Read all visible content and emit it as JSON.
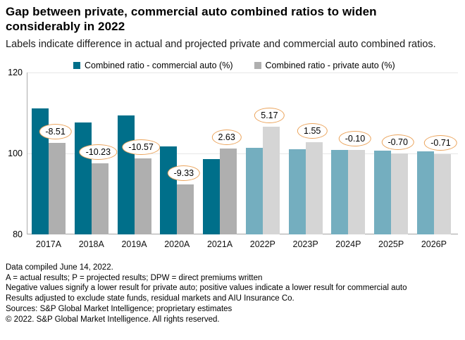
{
  "header": {
    "title": "Gap between private, commercial auto combined ratios to widen considerably in 2022",
    "subtitle": "Labels indicate difference in actual and projected private and commercial auto combined ratios."
  },
  "chart_data": {
    "type": "bar",
    "categories": [
      "2017A",
      "2018A",
      "2019A",
      "2020A",
      "2021A",
      "2022P",
      "2023P",
      "2024P",
      "2025P",
      "2026P"
    ],
    "series": [
      {
        "name": "Combined ratio - commercial auto (%)",
        "values": [
          111.1,
          107.7,
          109.4,
          101.7,
          98.6,
          101.4,
          101.1,
          100.9,
          100.7,
          100.5
        ],
        "color_actual": "#006F8A",
        "color_projected": "#74AEBF"
      },
      {
        "name": "Combined ratio - private auto (%)",
        "values": [
          102.6,
          97.5,
          98.8,
          92.4,
          101.2,
          106.6,
          102.7,
          100.8,
          100.0,
          99.8
        ],
        "color_actual": "#AFAFAF",
        "color_projected": "#D5D5D5"
      }
    ],
    "diff_labels": [
      "-8.51",
      "-10.23",
      "-10.57",
      "-9.33",
      "2.63",
      "5.17",
      "1.55",
      "-0.10",
      "-0.70",
      "-0.71"
    ],
    "projected_from_index": 5,
    "ylim": [
      80,
      120
    ],
    "yticks": [
      "120",
      "100",
      "80"
    ],
    "grid": "horizontal at 120 and 100",
    "legend_position": "top",
    "label_outline_color": "#EBA45C"
  },
  "footer": {
    "lines": [
      "Data compiled June 14, 2022.",
      "A = actual results; P = projected results; DPW = direct premiums written",
      "Negative values signify a lower result for private auto; positive values indicate a lower result for commercial auto",
      "Results adjusted to exclude state funds, residual markets and AIU Insurance Co.",
      "Sources: S&P Global Market Intelligence; proprietary estimates",
      "© 2022. S&P Global Market Intelligence. All rights reserved."
    ]
  }
}
